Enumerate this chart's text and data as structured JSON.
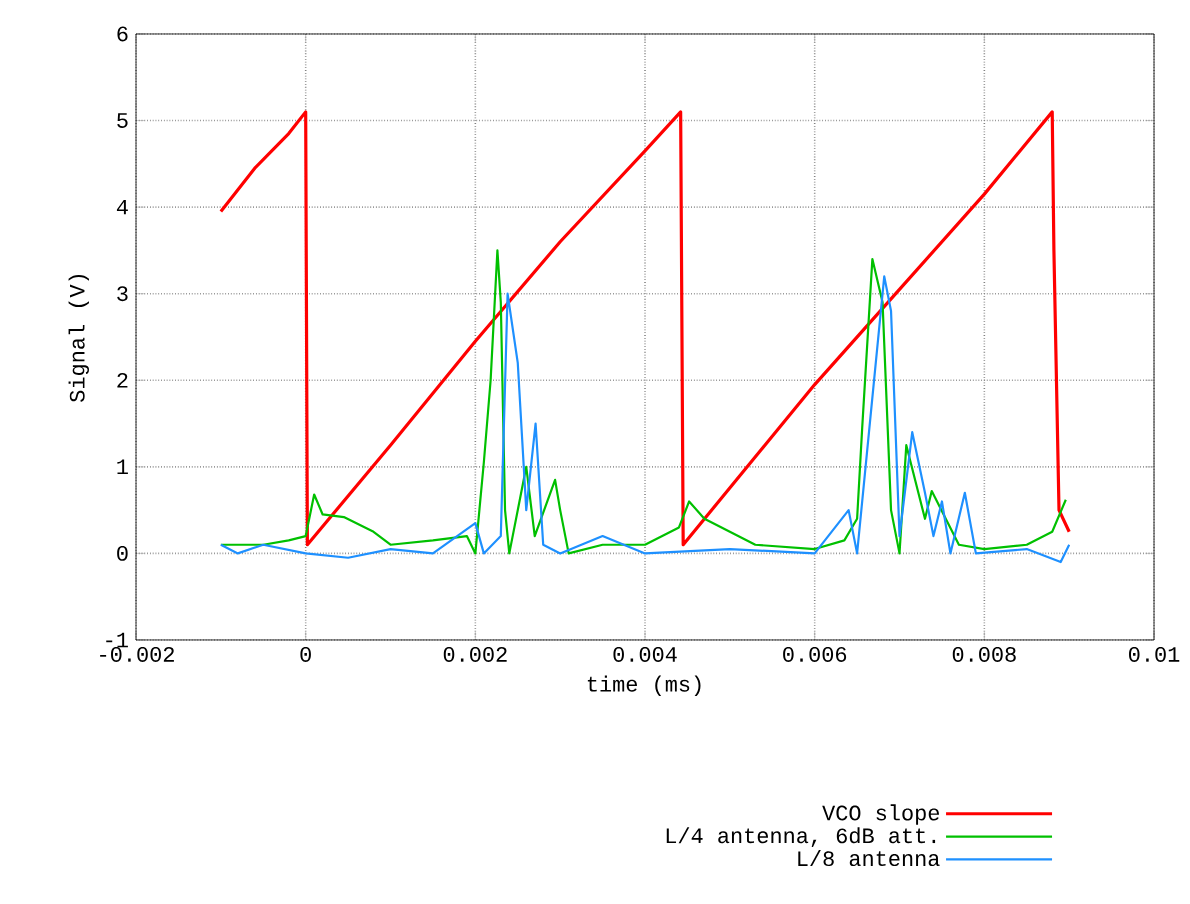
{
  "chart_data": {
    "type": "line",
    "xlabel": "time (ms)",
    "ylabel": "Signal (V)",
    "xlim": [
      -0.002,
      0.01
    ],
    "ylim": [
      -1,
      6
    ],
    "xticks": [
      -0.002,
      0,
      0.002,
      0.004,
      0.006,
      0.008,
      0.01
    ],
    "yticks": [
      -1,
      0,
      1,
      2,
      3,
      4,
      5,
      6
    ],
    "grid": true,
    "legend": "bottom right",
    "series": [
      {
        "name": "VCO slope",
        "color": "#ff0000",
        "x": [
          -0.001,
          -0.0008,
          -0.0006,
          -0.0004,
          -0.0002,
          0,
          2e-05,
          0.001,
          0.002,
          0.003,
          0.004,
          0.00442,
          0.00445,
          0.006,
          0.007,
          0.008,
          0.0088,
          0.00882,
          0.00888,
          0.009
        ],
        "values": [
          3.95,
          4.2,
          4.45,
          4.65,
          4.85,
          5.1,
          0.1,
          1.25,
          2.45,
          3.6,
          4.65,
          5.1,
          0.1,
          1.95,
          3.05,
          4.15,
          5.1,
          3.5,
          0.5,
          0.25
        ]
      },
      {
        "name": "L/4 antenna, 6dB att.",
        "color": "#00c000",
        "x": [
          -0.001,
          -0.0005,
          -0.0002,
          0,
          0.0001,
          0.0002,
          0.00045,
          0.0008,
          0.001,
          0.0015,
          0.0019,
          0.002,
          0.0021,
          0.00218,
          0.00226,
          0.0023,
          0.00235,
          0.0024,
          0.0026,
          0.0027,
          0.00294,
          0.003,
          0.0031,
          0.0035,
          0.004,
          0.0044,
          0.00452,
          0.0047,
          0.005,
          0.0053,
          0.006,
          0.00635,
          0.0065,
          0.00656,
          0.00668,
          0.0068,
          0.0069,
          0.007,
          0.00708,
          0.0073,
          0.00738,
          0.0077,
          0.008,
          0.0085,
          0.0088,
          0.00896
        ],
        "values": [
          0.1,
          0.1,
          0.15,
          0.2,
          0.68,
          0.45,
          0.42,
          0.25,
          0.1,
          0.15,
          0.2,
          0.0,
          1.05,
          2.0,
          3.5,
          2.9,
          0.5,
          0.0,
          1.0,
          0.2,
          0.85,
          0.5,
          0.0,
          0.1,
          0.1,
          0.3,
          0.6,
          0.4,
          0.25,
          0.1,
          0.05,
          0.15,
          0.4,
          1.45,
          3.4,
          2.9,
          0.5,
          0.0,
          1.25,
          0.4,
          0.72,
          0.1,
          0.05,
          0.1,
          0.25,
          0.62
        ]
      },
      {
        "name": "L/8 antenna",
        "color": "#1e90ff",
        "x": [
          -0.001,
          -0.0008,
          -0.0005,
          0,
          0.0005,
          0.001,
          0.0015,
          0.002,
          0.0021,
          0.0023,
          0.00238,
          0.0025,
          0.0026,
          0.00271,
          0.0028,
          0.003,
          0.0035,
          0.004,
          0.005,
          0.006,
          0.0064,
          0.0065,
          0.00682,
          0.0069,
          0.007,
          0.00715,
          0.0073,
          0.0074,
          0.0075,
          0.0076,
          0.00777,
          0.0079,
          0.0085,
          0.0089,
          0.009
        ],
        "values": [
          0.1,
          0.0,
          0.1,
          0.0,
          -0.05,
          0.05,
          0.0,
          0.35,
          0.0,
          0.2,
          3.0,
          2.2,
          0.5,
          1.5,
          0.1,
          0.0,
          0.2,
          0.0,
          0.05,
          0.0,
          0.5,
          0.0,
          3.2,
          2.8,
          0.2,
          1.4,
          0.7,
          0.2,
          0.6,
          0.0,
          0.7,
          0.0,
          0.05,
          -0.1,
          0.1
        ]
      }
    ]
  }
}
